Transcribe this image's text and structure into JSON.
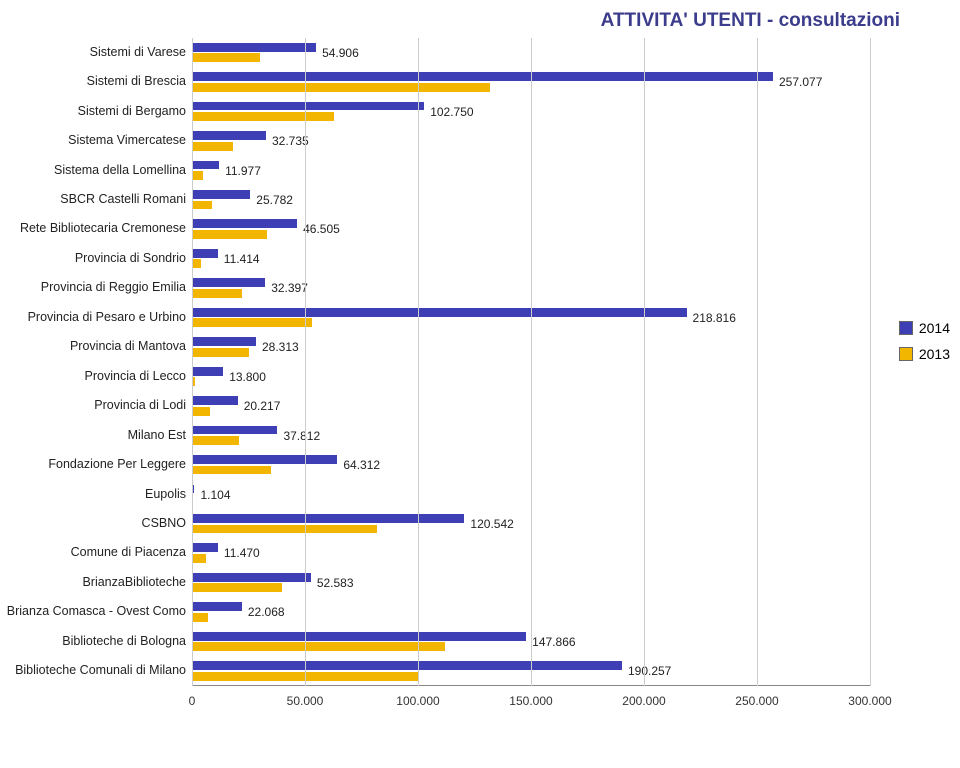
{
  "chart": {
    "title": "ATTIVITA' UTENTI - consultazioni",
    "title_color": "#3c3c8c",
    "title_fontsize": 19,
    "type": "grouped-horizontal-bar",
    "background_color": "#ffffff",
    "grid_color": "#cccccc",
    "axis_color": "#888888",
    "xlim": [
      0,
      300000
    ],
    "xtick_step": 50000,
    "xticks": [
      0,
      50000,
      100000,
      150000,
      200000,
      250000,
      300000
    ],
    "xtick_labels": [
      "0",
      "50.000",
      "100.000",
      "150.000",
      "200.000",
      "250.000",
      "300.000"
    ],
    "label_fontsize": 12,
    "category_fontsize": 12.5,
    "series": [
      {
        "name": "2014",
        "color": "#3f3fb5",
        "label": "2014"
      },
      {
        "name": "2013",
        "color": "#f2b600",
        "label": "2013"
      }
    ],
    "categories": [
      {
        "label": "Sistemi di Varese",
        "v2014": 54906,
        "v2013": 30000,
        "value_label": "54.906"
      },
      {
        "label": "Sistemi di Brescia",
        "v2014": 257077,
        "v2013": 132000,
        "value_label": "257.077"
      },
      {
        "label": "Sistemi di Bergamo",
        "v2014": 102750,
        "v2013": 63000,
        "value_label": "102.750"
      },
      {
        "label": "Sistema Vimercatese",
        "v2014": 32735,
        "v2013": 18000,
        "value_label": "32.735"
      },
      {
        "label": "Sistema della Lomellina",
        "v2014": 11977,
        "v2013": 5000,
        "value_label": "11.977"
      },
      {
        "label": "SBCR Castelli Romani",
        "v2014": 25782,
        "v2013": 9000,
        "value_label": "25.782"
      },
      {
        "label": "Rete Bibliotecaria Cremonese",
        "v2014": 46505,
        "v2013": 33000,
        "value_label": "46.505"
      },
      {
        "label": "Provincia di Sondrio",
        "v2014": 11414,
        "v2013": 4000,
        "value_label": "11.414"
      },
      {
        "label": "Provincia di Reggio Emilia",
        "v2014": 32397,
        "v2013": 22000,
        "value_label": "32.397"
      },
      {
        "label": "Provincia di Pesaro e Urbino",
        "v2014": 218816,
        "v2013": 53000,
        "value_label": "218.816"
      },
      {
        "label": "Provincia di Mantova",
        "v2014": 28313,
        "v2013": 25000,
        "value_label": "28.313"
      },
      {
        "label": "Provincia di Lecco",
        "v2014": 13800,
        "v2013": 1500,
        "value_label": "13.800"
      },
      {
        "label": "Provincia di Lodi",
        "v2014": 20217,
        "v2013": 8000,
        "value_label": "20.217"
      },
      {
        "label": "Milano Est",
        "v2014": 37812,
        "v2013": 21000,
        "value_label": "37.812"
      },
      {
        "label": "Fondazione Per Leggere",
        "v2014": 64312,
        "v2013": 35000,
        "value_label": "64.312"
      },
      {
        "label": "Eupolis",
        "v2014": 1104,
        "v2013": 500,
        "value_label": "1.104"
      },
      {
        "label": "CSBNO",
        "v2014": 120542,
        "v2013": 82000,
        "value_label": "120.542"
      },
      {
        "label": "Comune di Piacenza",
        "v2014": 11470,
        "v2013": 6000,
        "value_label": "11.470"
      },
      {
        "label": "BrianzaBiblioteche",
        "v2014": 52583,
        "v2013": 40000,
        "value_label": "52.583"
      },
      {
        "label": "Brianza Comasca - Ovest Como",
        "v2014": 22068,
        "v2013": 7000,
        "value_label": "22.068"
      },
      {
        "label": "Biblioteche di Bologna",
        "v2014": 147866,
        "v2013": 112000,
        "value_label": "147.866"
      },
      {
        "label": "Biblioteche Comunali di Milano",
        "v2014": 190257,
        "v2013": 100000,
        "value_label": "190.257"
      }
    ],
    "legend": {
      "items": [
        {
          "label": "2014",
          "color": "#3f3fb5"
        },
        {
          "label": "2013",
          "color": "#f2b600"
        }
      ]
    }
  }
}
